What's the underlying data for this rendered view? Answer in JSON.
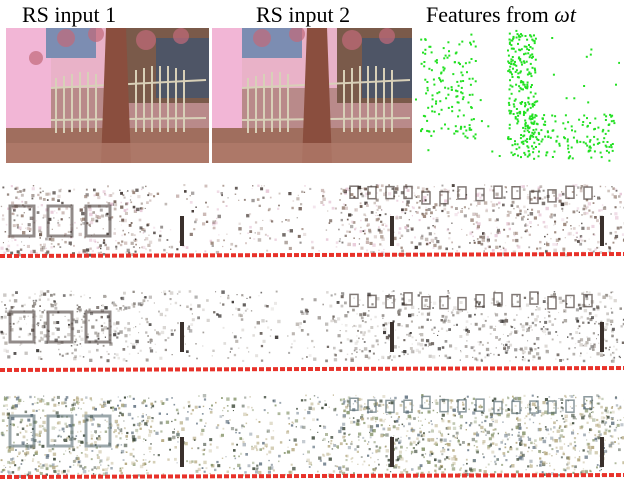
{
  "figure": {
    "labels": {
      "rs_input_1": "RS input 1",
      "rs_input_2": "RS input 2",
      "features_prefix": "Features from ",
      "features_symbol": "ωt"
    },
    "colors": {
      "feature_points": "#22e022",
      "trajectory": "#e8322a",
      "background": "#ffffff"
    },
    "rows": [
      {
        "name": "reconstruction-row-1"
      },
      {
        "name": "reconstruction-row-2"
      },
      {
        "name": "reconstruction-row-3"
      }
    ]
  }
}
